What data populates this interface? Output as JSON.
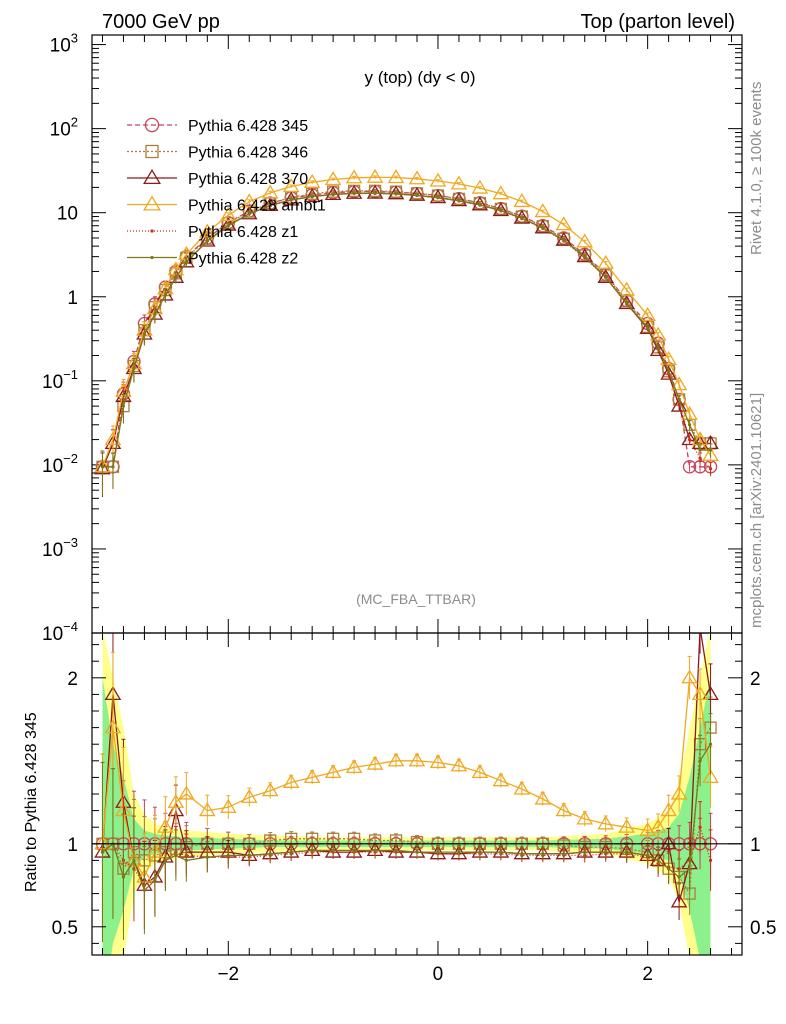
{
  "header": {
    "left": "7000 GeV pp",
    "right": "Top (parton level)"
  },
  "side_labels": {
    "rivet": "Rivet 4.1.0, ≥ 100k events",
    "mcplots": "mcplots.cern.ch [arXiv:2401.10621]"
  },
  "chart_data": [
    {
      "type": "line",
      "title": "y (top) (dy < 0)",
      "watermark": "(MC_FBA_TTBAR)",
      "xlabel": "",
      "ylabel": "",
      "yscale": "log",
      "xlim": [
        -3.3,
        2.9
      ],
      "ylim": [
        0.0001,
        1300
      ],
      "y_ticks": [
        {
          "v": 0.0001,
          "base": "10",
          "exp": "−4"
        },
        {
          "v": 0.001,
          "base": "10",
          "exp": "−3"
        },
        {
          "v": 0.01,
          "base": "10",
          "exp": "−2"
        },
        {
          "v": 0.1,
          "base": "10",
          "exp": "−1"
        },
        {
          "v": 1,
          "base": "1",
          "exp": ""
        },
        {
          "v": 10,
          "base": "10",
          "exp": ""
        },
        {
          "v": 100,
          "base": "10",
          "exp": "2"
        },
        {
          "v": 1000,
          "base": "10",
          "exp": "3"
        }
      ],
      "x": [
        -3.2,
        -3.1,
        -3.0,
        -2.9,
        -2.8,
        -2.7,
        -2.6,
        -2.5,
        -2.4,
        -2.2,
        -2.0,
        -1.8,
        -1.6,
        -1.4,
        -1.2,
        -1.0,
        -0.8,
        -0.6,
        -0.4,
        -0.2,
        0.0,
        0.2,
        0.4,
        0.6,
        0.8,
        1.0,
        1.2,
        1.4,
        1.6,
        1.8,
        2.0,
        2.1,
        2.2,
        2.3,
        2.4,
        2.5,
        2.6
      ],
      "series": [
        {
          "name": "Pythia 6.428 345",
          "color": "#c8415a",
          "dash": "5,3",
          "marker": "circle",
          "values": [
            0.0095,
            0.0095,
            0.07,
            0.17,
            0.48,
            0.82,
            1.3,
            2.0,
            3.0,
            5.0,
            7.6,
            10.5,
            13.0,
            15.0,
            16.3,
            17.3,
            17.8,
            17.9,
            17.6,
            16.9,
            16.0,
            14.7,
            13.1,
            11.2,
            9.1,
            7.0,
            5.0,
            3.2,
            1.85,
            0.9,
            0.48,
            0.28,
            0.14,
            0.06,
            0.0095,
            0.0095,
            0.0095
          ]
        },
        {
          "name": "Pythia 6.428 346",
          "color": "#a8803c",
          "dash": "2,2",
          "marker": "square",
          "values": [
            0.0095,
            0.0095,
            0.05,
            0.15,
            0.4,
            0.75,
            1.2,
            1.9,
            2.9,
            4.9,
            7.5,
            10.3,
            12.9,
            15.2,
            16.8,
            17.8,
            18.2,
            18.2,
            17.8,
            17.0,
            16.0,
            14.6,
            13.0,
            11.1,
            9.0,
            6.9,
            4.9,
            3.1,
            1.8,
            0.88,
            0.44,
            0.25,
            0.13,
            0.06,
            0.03,
            0.018,
            0.018
          ]
        },
        {
          "name": "Pythia 6.428 370",
          "color": "#8b1a1a",
          "dash": "",
          "marker": "triangle",
          "values": [
            0.009,
            0.018,
            0.065,
            0.14,
            0.36,
            0.62,
            1.05,
            1.7,
            2.6,
            4.6,
            7.1,
            9.7,
            12.2,
            14.2,
            15.6,
            16.5,
            17.0,
            17.1,
            16.8,
            16.1,
            15.1,
            13.9,
            12.4,
            10.6,
            8.6,
            6.6,
            4.7,
            3.0,
            1.7,
            0.83,
            0.42,
            0.23,
            0.12,
            0.05,
            0.02,
            0.018,
            0.018
          ]
        },
        {
          "name": "Pythia 6.428 ambt1",
          "color": "#f0a820",
          "dash": "",
          "marker": "triangle",
          "values": [
            0.0095,
            0.02,
            0.075,
            0.16,
            0.4,
            0.72,
            1.25,
            2.1,
            3.2,
            5.9,
            9.3,
            13.5,
            17.2,
            20.5,
            23.0,
            24.8,
            26.0,
            26.4,
            26.2,
            25.3,
            23.8,
            22.0,
            19.6,
            16.8,
            13.6,
            10.3,
            7.2,
            4.5,
            2.5,
            1.2,
            0.6,
            0.35,
            0.18,
            0.09,
            0.04,
            0.02,
            0.013
          ]
        },
        {
          "name": "Pythia 6.428 z1",
          "color": "#d42a1a",
          "dash": "1,2",
          "marker": "dot",
          "values": [
            0.0095,
            0.0095,
            0.06,
            0.14,
            0.36,
            0.62,
            1.05,
            1.7,
            2.6,
            4.6,
            7.0,
            9.7,
            12.1,
            14.1,
            15.5,
            16.4,
            16.9,
            17.0,
            16.7,
            16.0,
            15.1,
            13.8,
            12.3,
            10.5,
            8.5,
            6.5,
            4.6,
            2.9,
            1.7,
            0.82,
            0.42,
            0.24,
            0.12,
            0.055,
            0.02,
            0.012,
            0.009
          ]
        },
        {
          "name": "Pythia 6.428 z2",
          "color": "#7a7a14",
          "dash": "",
          "marker": "dot",
          "values": [
            0.0095,
            0.0095,
            0.05,
            0.14,
            0.36,
            0.62,
            1.05,
            1.7,
            2.6,
            4.6,
            7.0,
            9.7,
            12.2,
            14.2,
            15.6,
            16.5,
            17.0,
            17.1,
            16.8,
            16.1,
            15.1,
            13.9,
            12.4,
            10.6,
            8.6,
            6.6,
            4.7,
            3.0,
            1.7,
            0.84,
            0.43,
            0.25,
            0.13,
            0.06,
            0.03,
            0.015,
            0.015
          ]
        }
      ]
    },
    {
      "type": "line",
      "title": "",
      "xlabel": "",
      "ylabel": "Ratio to Pythia 6.428 345",
      "yscale": "linear",
      "xlim": [
        -3.3,
        2.9
      ],
      "ylim": [
        0.33,
        2.27
      ],
      "y_ticks": [
        0.5,
        1,
        2
      ],
      "x_ticks": [
        -2,
        0,
        2
      ],
      "x_tick_labels": [
        "−2",
        "0",
        "2"
      ],
      "reference_line": 1,
      "band_x": [
        -3.2,
        -3.1,
        -3.0,
        -2.9,
        -2.8,
        -2.7,
        -2.6,
        -2.4,
        -2.0,
        -1.6,
        -1.0,
        0.0,
        1.0,
        1.6,
        2.0,
        2.2,
        2.3,
        2.4,
        2.5,
        2.6
      ],
      "band_inner": [
        1.0,
        0.6,
        0.4,
        0.15,
        0.08,
        0.06,
        0.05,
        0.04,
        0.03,
        0.02,
        0.02,
        0.02,
        0.02,
        0.03,
        0.06,
        0.1,
        0.18,
        0.4,
        0.7,
        1.0
      ],
      "band_outer": [
        1.3,
        1.0,
        0.7,
        0.3,
        0.18,
        0.12,
        0.1,
        0.08,
        0.06,
        0.05,
        0.04,
        0.04,
        0.04,
        0.06,
        0.12,
        0.2,
        0.35,
        0.7,
        1.0,
        1.3
      ],
      "x": [
        -3.2,
        -3.1,
        -3.0,
        -2.9,
        -2.8,
        -2.7,
        -2.6,
        -2.5,
        -2.4,
        -2.2,
        -2.0,
        -1.8,
        -1.6,
        -1.4,
        -1.2,
        -1.0,
        -0.8,
        -0.6,
        -0.4,
        -0.2,
        0.0,
        0.2,
        0.4,
        0.6,
        0.8,
        1.0,
        1.2,
        1.4,
        1.6,
        1.8,
        2.0,
        2.1,
        2.2,
        2.3,
        2.4,
        2.5,
        2.6
      ],
      "series": [
        {
          "name": "Pythia 6.428 345",
          "color": "#c8415a",
          "dash": "5,3",
          "marker": "circle",
          "values": [
            1.0,
            1.0,
            1.0,
            1.0,
            1.0,
            1.0,
            1.0,
            1.0,
            1.0,
            1.0,
            1.0,
            1.0,
            1.0,
            1.0,
            1.0,
            1.0,
            1.0,
            1.0,
            1.0,
            1.0,
            1.0,
            1.0,
            1.0,
            1.0,
            1.0,
            1.0,
            1.0,
            1.0,
            1.0,
            1.0,
            1.0,
            1.0,
            1.0,
            1.0,
            1.0,
            1.0,
            1.0
          ]
        },
        {
          "name": "Pythia 6.428 346",
          "color": "#a8803c",
          "dash": "2,2",
          "marker": "square",
          "values": [
            1.0,
            1.0,
            0.85,
            0.95,
            0.9,
            0.93,
            0.95,
            0.97,
            0.98,
            1.0,
            1.0,
            1.0,
            1.02,
            1.03,
            1.03,
            1.03,
            1.03,
            1.02,
            1.02,
            1.01,
            1.0,
            1.0,
            1.0,
            1.0,
            1.0,
            1.0,
            0.99,
            0.98,
            0.98,
            0.97,
            0.95,
            0.9,
            0.85,
            0.8,
            0.7,
            1.6,
            1.7
          ]
        },
        {
          "name": "Pythia 6.428 370",
          "color": "#8b1a1a",
          "dash": "",
          "marker": "triangle",
          "values": [
            0.95,
            1.9,
            1.25,
            0.9,
            0.75,
            0.8,
            0.92,
            1.2,
            0.95,
            0.95,
            0.95,
            0.93,
            0.94,
            0.95,
            0.96,
            0.95,
            0.95,
            0.96,
            0.95,
            0.95,
            0.94,
            0.94,
            0.95,
            0.95,
            0.94,
            0.94,
            0.94,
            0.95,
            0.95,
            0.95,
            0.93,
            0.9,
            1.0,
            0.65,
            0.88,
            2.3,
            1.9
          ]
        },
        {
          "name": "Pythia 6.428 ambt1",
          "color": "#f0a820",
          "dash": "",
          "marker": "triangle",
          "values": [
            1.0,
            1.7,
            1.2,
            0.9,
            0.8,
            0.95,
            1.1,
            1.25,
            1.3,
            1.2,
            1.22,
            1.28,
            1.32,
            1.37,
            1.4,
            1.43,
            1.46,
            1.48,
            1.5,
            1.5,
            1.49,
            1.47,
            1.43,
            1.38,
            1.33,
            1.27,
            1.2,
            1.15,
            1.12,
            1.1,
            1.08,
            1.1,
            1.2,
            1.3,
            2.0,
            1.9,
            1.4
          ]
        },
        {
          "name": "Pythia 6.428 z1",
          "color": "#d42a1a",
          "dash": "1,2",
          "marker": "dot",
          "values": [
            0.95,
            1.0,
            0.9,
            0.85,
            0.75,
            0.78,
            0.9,
            0.95,
            0.93,
            0.92,
            0.92,
            0.92,
            0.93,
            0.94,
            0.95,
            0.95,
            0.95,
            0.95,
            0.95,
            0.95,
            0.94,
            0.94,
            0.94,
            0.94,
            0.93,
            0.93,
            0.93,
            0.93,
            0.94,
            0.94,
            0.92,
            0.88,
            0.86,
            0.85,
            0.9,
            1.1,
            0.9
          ]
        },
        {
          "name": "Pythia 6.428 z2",
          "color": "#7a7a14",
          "dash": "",
          "marker": "dot",
          "values": [
            0.95,
            1.0,
            0.8,
            0.9,
            0.72,
            0.78,
            0.9,
            0.93,
            0.9,
            0.92,
            0.93,
            0.93,
            0.94,
            0.95,
            0.96,
            0.96,
            0.96,
            0.96,
            0.96,
            0.95,
            0.95,
            0.95,
            0.95,
            0.95,
            0.94,
            0.94,
            0.94,
            0.95,
            0.95,
            0.95,
            0.93,
            0.9,
            0.85,
            0.8,
            0.85,
            1.5,
            1.6
          ]
        }
      ]
    }
  ]
}
